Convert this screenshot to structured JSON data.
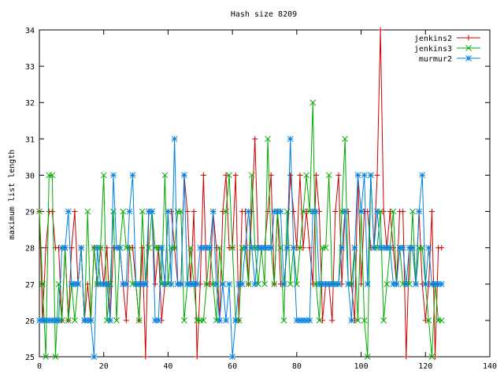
{
  "chart_data": {
    "type": "line",
    "title": "Hash size 8209",
    "xlabel": "",
    "ylabel": "maximum list length",
    "xlim": [
      0,
      140
    ],
    "ylim": [
      25,
      34
    ],
    "xticks": [
      0,
      20,
      40,
      60,
      80,
      100,
      120,
      140
    ],
    "yticks": [
      25,
      26,
      27,
      28,
      29,
      30,
      31,
      32,
      33,
      34
    ],
    "grid": false,
    "legend_position": "top-right",
    "x": [
      0,
      1,
      2,
      3,
      4,
      5,
      6,
      7,
      8,
      9,
      10,
      11,
      12,
      13,
      14,
      15,
      16,
      17,
      18,
      19,
      20,
      21,
      22,
      23,
      24,
      25,
      26,
      27,
      28,
      29,
      30,
      31,
      32,
      33,
      34,
      35,
      36,
      37,
      38,
      39,
      40,
      41,
      42,
      43,
      44,
      45,
      46,
      47,
      48,
      49,
      50,
      51,
      52,
      53,
      54,
      55,
      56,
      57,
      58,
      59,
      60,
      61,
      62,
      63,
      64,
      65,
      66,
      67,
      68,
      69,
      70,
      71,
      72,
      73,
      74,
      75,
      76,
      77,
      78,
      79,
      80,
      81,
      82,
      83,
      84,
      85,
      86,
      87,
      88,
      89,
      90,
      91,
      92,
      93,
      94,
      95,
      96,
      97,
      98,
      99,
      100,
      101,
      102,
      103,
      104,
      105,
      106,
      107,
      108,
      109,
      110,
      111,
      112,
      113,
      114,
      115,
      116,
      117,
      118,
      119,
      120,
      121,
      122,
      123,
      124,
      125
    ],
    "series": [
      {
        "name": "jenkins2",
        "color": "#cc0000",
        "marker": "plus",
        "values": [
          29,
          26,
          28,
          29,
          29,
          28,
          28,
          26,
          28,
          26,
          28,
          29,
          27,
          28,
          26,
          27,
          26,
          28,
          27,
          28,
          27,
          28,
          26,
          28,
          28,
          28,
          27,
          26,
          28,
          28,
          27,
          26,
          28,
          25,
          29,
          29,
          27,
          28,
          26,
          27,
          29,
          29,
          28,
          27,
          27,
          30,
          29,
          27,
          29,
          25,
          27,
          30,
          27,
          27,
          29,
          28,
          26,
          29,
          30,
          28,
          28,
          30,
          26,
          29,
          29,
          27,
          29,
          31,
          28,
          28,
          28,
          29,
          30,
          27,
          29,
          27,
          27,
          28,
          30,
          29,
          28,
          30,
          28,
          29,
          28,
          27,
          30,
          29,
          26,
          27,
          27,
          26,
          29,
          30,
          27,
          29,
          29,
          27,
          26,
          30,
          27,
          29,
          29,
          28,
          28,
          30,
          34,
          29,
          28,
          29,
          28,
          27,
          29,
          29,
          25,
          28,
          28,
          27,
          29,
          27,
          26,
          27,
          29,
          25,
          28,
          28
        ]
      },
      {
        "name": "jenkins3",
        "color": "#00aa00",
        "marker": "cross",
        "values": [
          29,
          27,
          25,
          30,
          30,
          25,
          27,
          26,
          28,
          26,
          27,
          26,
          27,
          28,
          26,
          29,
          26,
          28,
          27,
          28,
          30,
          26,
          27,
          29,
          26,
          28,
          29,
          28,
          28,
          27,
          27,
          26,
          29,
          27,
          28,
          29,
          28,
          28,
          27,
          30,
          27,
          28,
          28,
          29,
          29,
          26,
          27,
          28,
          27,
          26,
          26,
          26,
          27,
          28,
          27,
          26,
          28,
          27,
          29,
          30,
          28,
          26,
          26,
          28,
          28,
          27,
          30,
          28,
          27,
          28,
          27,
          31,
          28,
          27,
          29,
          28,
          26,
          29,
          27,
          28,
          27,
          28,
          29,
          30,
          29,
          32,
          27,
          26,
          28,
          28,
          30,
          27,
          27,
          27,
          29,
          31,
          27,
          27,
          28,
          26,
          29,
          26,
          25,
          30,
          28,
          28,
          29,
          26,
          27,
          28,
          29,
          27,
          28,
          27,
          27,
          27,
          29,
          27,
          28,
          28,
          27,
          26,
          25,
          27,
          26,
          26
        ]
      },
      {
        "name": "murmur2",
        "color": "#0080dd",
        "marker": "star",
        "values": [
          26,
          26,
          26,
          26,
          26,
          26,
          26,
          28,
          28,
          29,
          27,
          27,
          27,
          28,
          26,
          26,
          26,
          25,
          28,
          27,
          27,
          27,
          26,
          30,
          28,
          28,
          27,
          27,
          29,
          30,
          27,
          27,
          27,
          27,
          29,
          29,
          26,
          26,
          28,
          27,
          29,
          27,
          31,
          27,
          27,
          30,
          27,
          27,
          27,
          27,
          28,
          28,
          28,
          28,
          29,
          27,
          26,
          27,
          26,
          27,
          25,
          26,
          27,
          27,
          28,
          29,
          28,
          27,
          28,
          28,
          28,
          28,
          28,
          29,
          29,
          29,
          27,
          28,
          31,
          28,
          26,
          26,
          26,
          26,
          26,
          29,
          29,
          27,
          27,
          27,
          27,
          27,
          27,
          27,
          28,
          29,
          27,
          26,
          28,
          30,
          29,
          30,
          27,
          30,
          28,
          29,
          28,
          28,
          28,
          28,
          27,
          27,
          28,
          28,
          27,
          28,
          28,
          27,
          29,
          30,
          27,
          28,
          27,
          27,
          27,
          27
        ]
      }
    ]
  }
}
